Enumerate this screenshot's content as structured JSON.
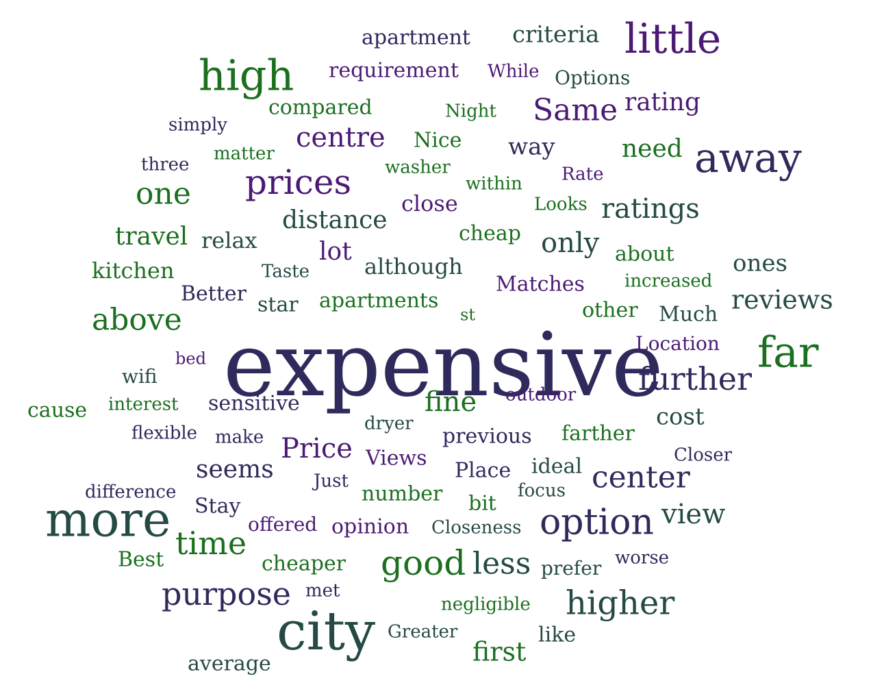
{
  "palette": {
    "navy": "#2e2a5c",
    "purple": "#4b1a74",
    "green": "#1b6f1f",
    "slate": "#254a46"
  },
  "words": [
    {
      "text": "expensive",
      "color": "navy"
    },
    {
      "text": "city",
      "color": "slate"
    },
    {
      "text": "more",
      "color": "slate"
    },
    {
      "text": "high",
      "color": "green"
    },
    {
      "text": "away",
      "color": "navy"
    },
    {
      "text": "little",
      "color": "purple"
    },
    {
      "text": "far",
      "color": "green"
    },
    {
      "text": "option",
      "color": "navy"
    },
    {
      "text": "prices",
      "color": "purple"
    },
    {
      "text": "good",
      "color": "green"
    },
    {
      "text": "higher",
      "color": "slate"
    },
    {
      "text": "further",
      "color": "navy"
    },
    {
      "text": "purpose",
      "color": "navy"
    },
    {
      "text": "time",
      "color": "green"
    },
    {
      "text": "center",
      "color": "navy"
    },
    {
      "text": "less",
      "color": "slate"
    },
    {
      "text": "Same",
      "color": "purple"
    },
    {
      "text": "above",
      "color": "green"
    },
    {
      "text": "one",
      "color": "green"
    },
    {
      "text": "centre",
      "color": "purple"
    },
    {
      "text": "view",
      "color": "slate"
    },
    {
      "text": "ratings",
      "color": "slate"
    },
    {
      "text": "reviews",
      "color": "slate"
    },
    {
      "text": "only",
      "color": "slate"
    },
    {
      "text": "distance",
      "color": "slate"
    },
    {
      "text": "fine",
      "color": "green"
    },
    {
      "text": "Price",
      "color": "purple"
    },
    {
      "text": "first",
      "color": "green"
    },
    {
      "text": "seems",
      "color": "navy"
    },
    {
      "text": "travel",
      "color": "green"
    },
    {
      "text": "rating",
      "color": "purple"
    },
    {
      "text": "need",
      "color": "green"
    },
    {
      "text": "lot",
      "color": "purple"
    },
    {
      "text": "cost",
      "color": "slate"
    },
    {
      "text": "way",
      "color": "navy"
    },
    {
      "text": "criteria",
      "color": "slate"
    },
    {
      "text": "ones",
      "color": "slate"
    },
    {
      "text": "kitchen",
      "color": "green"
    },
    {
      "text": "although",
      "color": "slate"
    },
    {
      "text": "close",
      "color": "purple"
    },
    {
      "text": "relax",
      "color": "slate"
    },
    {
      "text": "apartment",
      "color": "navy"
    },
    {
      "text": "requirement",
      "color": "purple"
    },
    {
      "text": "compared",
      "color": "green"
    },
    {
      "text": "cheap",
      "color": "green"
    },
    {
      "text": "apartments",
      "color": "green"
    },
    {
      "text": "Matches",
      "color": "purple"
    },
    {
      "text": "Much",
      "color": "slate"
    },
    {
      "text": "about",
      "color": "green"
    },
    {
      "text": "other",
      "color": "green"
    },
    {
      "text": "previous",
      "color": "navy"
    },
    {
      "text": "farther",
      "color": "green"
    },
    {
      "text": "Place",
      "color": "navy"
    },
    {
      "text": "ideal",
      "color": "slate"
    },
    {
      "text": "number",
      "color": "green"
    },
    {
      "text": "opinion",
      "color": "purple"
    },
    {
      "text": "cheaper",
      "color": "green"
    },
    {
      "text": "sensitive",
      "color": "navy"
    },
    {
      "text": "Better",
      "color": "navy"
    },
    {
      "text": "star",
      "color": "slate"
    },
    {
      "text": "Views",
      "color": "purple"
    },
    {
      "text": "Location",
      "color": "purple"
    },
    {
      "text": "cause",
      "color": "green"
    },
    {
      "text": "average",
      "color": "slate"
    },
    {
      "text": "Nice",
      "color": "green"
    },
    {
      "text": "Options",
      "color": "slate"
    },
    {
      "text": "increased",
      "color": "green"
    },
    {
      "text": "bit",
      "color": "green"
    },
    {
      "text": "Closeness",
      "color": "slate"
    },
    {
      "text": "Stay",
      "color": "navy"
    },
    {
      "text": "offered",
      "color": "purple"
    },
    {
      "text": "Best",
      "color": "green"
    },
    {
      "text": "prefer",
      "color": "slate"
    },
    {
      "text": "like",
      "color": "slate"
    },
    {
      "text": "negligible",
      "color": "green"
    },
    {
      "text": "Greater",
      "color": "slate"
    },
    {
      "text": "outdoor",
      "color": "purple"
    },
    {
      "text": "wifi",
      "color": "slate"
    },
    {
      "text": "interest",
      "color": "green"
    },
    {
      "text": "difference",
      "color": "navy"
    },
    {
      "text": "flexible",
      "color": "navy"
    },
    {
      "text": "make",
      "color": "navy"
    },
    {
      "text": "dryer",
      "color": "slate"
    },
    {
      "text": "washer",
      "color": "green"
    },
    {
      "text": "within",
      "color": "green"
    },
    {
      "text": "Rate",
      "color": "purple"
    },
    {
      "text": "Looks",
      "color": "green"
    },
    {
      "text": "matter",
      "color": "green"
    },
    {
      "text": "three",
      "color": "navy"
    },
    {
      "text": "simply",
      "color": "navy"
    },
    {
      "text": "Night",
      "color": "green"
    },
    {
      "text": "While",
      "color": "purple"
    },
    {
      "text": "Taste",
      "color": "slate"
    },
    {
      "text": "focus",
      "color": "slate"
    },
    {
      "text": "Just",
      "color": "navy"
    },
    {
      "text": "met",
      "color": "navy"
    },
    {
      "text": "worse",
      "color": "navy"
    },
    {
      "text": "Closer",
      "color": "navy"
    },
    {
      "text": "bed",
      "color": "purple"
    },
    {
      "text": "st",
      "color": "green"
    }
  ]
}
